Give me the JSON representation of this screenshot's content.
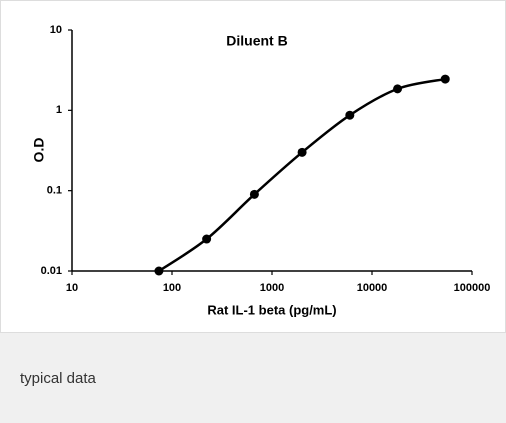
{
  "chart_data": {
    "type": "line",
    "title": "Diluent B",
    "x_label": "Rat IL-1 beta (pg/mL)",
    "y_label": "O.D",
    "x": [
      74,
      222,
      667,
      2000,
      6000,
      18000,
      54000
    ],
    "values": [
      0.01,
      0.025,
      0.09,
      0.3,
      0.87,
      1.85,
      2.45
    ],
    "color": "#000000",
    "xlim": [
      10,
      100000
    ],
    "xticks": [
      10,
      100,
      1000,
      10000,
      100000
    ],
    "ylim": [
      0.01,
      10
    ],
    "yticks": [
      0.01,
      0.1,
      1,
      10
    ],
    "xlog": true,
    "ylog": true,
    "grid": false
  },
  "caption": "typical data"
}
